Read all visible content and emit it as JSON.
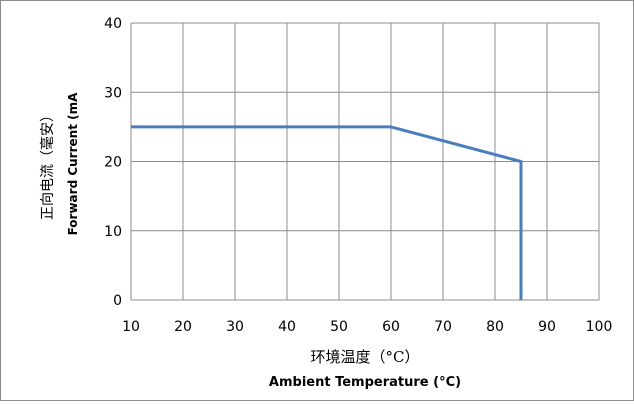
{
  "chart_data": {
    "type": "line",
    "ylabel_zh": "正向电流（毫安）",
    "ylabel_en": "Forward Current (mA",
    "xlabel_zh": "环境温度（°C）",
    "xlabel_en": "Ambient Temperature (°C)",
    "xlim": [
      10,
      100
    ],
    "ylim": [
      0,
      40
    ],
    "x_ticks": [
      "10",
      "20",
      "30",
      "40",
      "50",
      "60",
      "70",
      "80",
      "90",
      "100"
    ],
    "y_ticks": [
      "0",
      "10",
      "20",
      "30",
      "40"
    ],
    "grid": true,
    "line_color": "#4a7ebb",
    "grid_color": "#8c8c8c",
    "series": [
      {
        "x": [
          10,
          60,
          85,
          85
        ],
        "y": [
          25,
          25,
          20,
          0
        ]
      }
    ]
  }
}
